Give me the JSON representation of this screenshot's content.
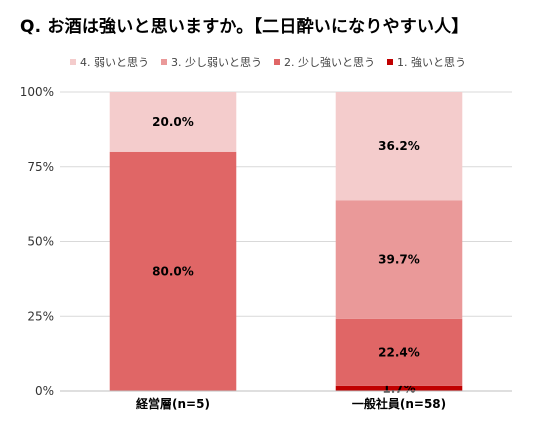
{
  "chart_data": {
    "type": "bar",
    "stacked": true,
    "title": "Q. お酒は強いと思いますか。【二日酔いになりやすい人】",
    "categories": [
      "経営層(n=5)",
      "一般社員(n=58)"
    ],
    "series": [
      {
        "name": "1. 強いと思う",
        "color": "#c00000",
        "values": [
          0,
          1.7
        ]
      },
      {
        "name": "2. 少し強いと思う",
        "color": "#e06666",
        "values": [
          80.0,
          22.4
        ]
      },
      {
        "name": "3. 少し弱いと思う",
        "color": "#ea9999",
        "values": [
          0,
          39.7
        ]
      },
      {
        "name": "4. 弱いと思う",
        "color": "#f4cccc",
        "values": [
          20.0,
          36.2
        ]
      }
    ],
    "legend_order": [
      3,
      2,
      1,
      0
    ],
    "y_ticks": [
      "0%",
      "25%",
      "50%",
      "75%",
      "100%"
    ],
    "ylim": [
      0,
      100
    ],
    "grid": true,
    "legend_position": "top"
  }
}
